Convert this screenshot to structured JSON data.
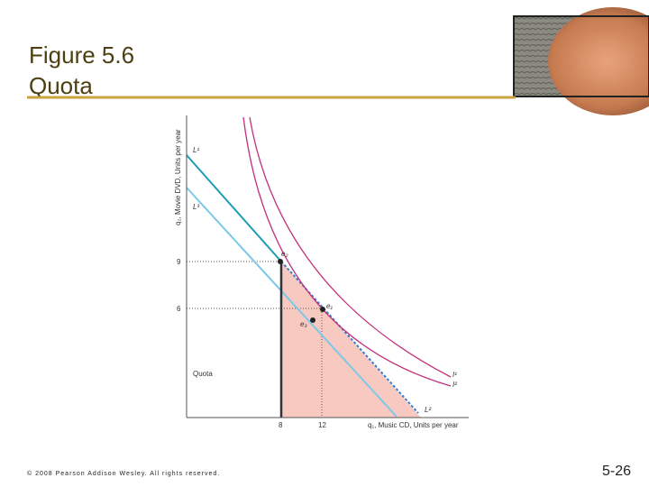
{
  "header": {
    "title_lines": [
      "Figure 5.6",
      "Quota"
    ]
  },
  "figure": {
    "y_axis_label": "q₂, Movie DVD, Units per year",
    "x_axis_label": "q₁, Music CD, Units per year",
    "y_ticks": [
      "9",
      "6"
    ],
    "x_ticks": [
      "8",
      "12"
    ],
    "labels": {
      "L1": "L¹",
      "L3": "L³",
      "L2": "L²",
      "I1": "I¹",
      "I2": "I²",
      "e1": "e₁",
      "e2": "e₂",
      "e3": "e₃",
      "quota": "Quota"
    }
  },
  "footer": {
    "copyright": "© 2008 Pearson Addison Wesley. All rights reserved.",
    "page": "5-26"
  }
}
